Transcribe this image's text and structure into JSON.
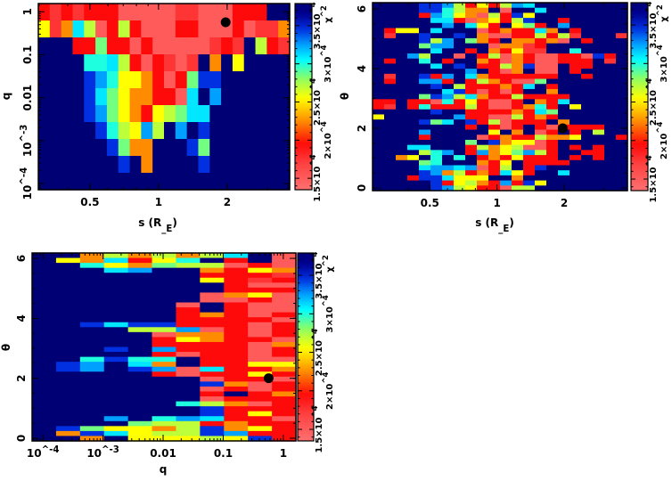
{
  "z_levels": {
    "P": 15000,
    "Q": 17500,
    "R": 19500,
    "O": 22500,
    "Y": 25500,
    "L": 27000,
    "G": 28500,
    "T": 30000,
    "C": 31000,
    "S": 32500,
    "B": 34500,
    "N": 38000
  },
  "colormap": [
    {
      "v": 13500,
      "color": "#ff7070"
    },
    {
      "v": 17000,
      "color": "#ff4040"
    },
    {
      "v": 19500,
      "color": "#ff0a0a"
    },
    {
      "v": 22500,
      "color": "#ff8c00"
    },
    {
      "v": 25500,
      "color": "#ffff00"
    },
    {
      "v": 28000,
      "color": "#90ff60"
    },
    {
      "v": 30500,
      "color": "#00ffff"
    },
    {
      "v": 32500,
      "color": "#00a0ff"
    },
    {
      "v": 34500,
      "color": "#0030e0"
    },
    {
      "v": 36500,
      "color": "#000090"
    },
    {
      "v": 38000,
      "color": "#000075"
    }
  ],
  "marker_color": "#000000",
  "chart_data": [
    {
      "type": "heatmap",
      "xlabel": "s (R_E)",
      "ylabel": "q",
      "xscale": "log",
      "yscale": "log",
      "xlim": [
        0.297,
        3.76
      ],
      "ylim": [
        7.2e-05,
        1.55
      ],
      "xticks": [
        {
          "v": 0.5,
          "label": "0.5"
        },
        {
          "v": 1,
          "label": "1"
        },
        {
          "v": 2,
          "label": "2"
        }
      ],
      "yticks": [
        {
          "v": 1,
          "label": "1"
        },
        {
          "v": 0.1,
          "label": "0.1"
        },
        {
          "v": 0.01,
          "label": "0.01"
        },
        {
          "v": 0.001,
          "label": "10^-3"
        },
        {
          "v": 0.0001,
          "label": "10^-4"
        }
      ],
      "z_label": "χ^2",
      "zlim": [
        13500,
        37900
      ],
      "z_ticks": [
        {
          "v": 15000,
          "label": "1.5×10^4"
        },
        {
          "v": 20000,
          "label": "2×10^4"
        },
        {
          "v": 25000,
          "label": "2.5×10^4"
        },
        {
          "v": 30000,
          "label": "3×10^4"
        },
        {
          "v": 35000,
          "label": "3.5×10^4"
        }
      ],
      "grid_cols": 22,
      "grid_rows_top_to_bottom": [
        "RQRQRRRPPPPPQQPPPRRRNN",
        "YQOCLPRLRPPPRRPPPRPQQO",
        "NNNRRGRRPRPPPPPQRQNLRQ",
        "NNNNTTCLRPRQPQNONYNNNN",
        "NNNNBSTYYORPRGBBNNNNNN",
        "NNNNBCGYOORRPCNSNNNNNN",
        "NNNNBSGYORYLGCCNNNNNNN",
        "NNNNNBTLYSLNSNBNNNNNNN",
        "NNNNNNBGOONNNBGNNNNNNN",
        "NNNNNNNBNONNNNBNNNNNNN",
        "NNNNNNNNNNNNNNNNNNNNNN"
      ],
      "best_fit": {
        "x": 1.97,
        "y": 0.57
      }
    },
    {
      "type": "heatmap",
      "xlabel": "s (R_E)",
      "ylabel": "θ",
      "xscale": "log",
      "yscale": "linear",
      "xlim": [
        0.277,
        3.84
      ],
      "ylim": [
        -0.09,
        6.21
      ],
      "xticks": [
        {
          "v": 0.5,
          "label": "0.5"
        },
        {
          "v": 1,
          "label": "1"
        },
        {
          "v": 2,
          "label": "2"
        }
      ],
      "yticks": [
        {
          "v": 0,
          "label": "0"
        },
        {
          "v": 2,
          "label": "2"
        },
        {
          "v": 4,
          "label": "4"
        },
        {
          "v": 6,
          "label": "6"
        }
      ],
      "z_label": "χ^2",
      "zlim": [
        13500,
        37900
      ],
      "z_ticks": [
        {
          "v": 15000,
          "label": "1.5×10^4"
        },
        {
          "v": 20000,
          "label": "2×10^4"
        },
        {
          "v": 25000,
          "label": "2.5×10^4"
        },
        {
          "v": 30000,
          "label": "3×10^4"
        },
        {
          "v": 35000,
          "label": "3.5×10^4"
        }
      ],
      "grid_cols": 22,
      "grid_rows_top_to_bottom": [
        "NNNNBBSLRYRLSCNNNNNNNN",
        "NNNNBBTLOONPNNCNNNNNNN",
        "NNNNRSTYOPLRBYNNNNNNNN",
        "NNNNNCCRPOYRLBNNRNNNNN",
        "NNNNNNSNCYRNYGRNSNNNNN",
        "NRYYNCNNNPRORRCONRNNNN",
        "NQNNBNNBNOPPRRLRLQNNNQ",
        "NNNNBLSNGORNOOROPNRNNN",
        "NNNNGSSNNNPOOQRNNNNNNN",
        "NNNNNCNNRNORYQQNNTNNNN",
        "NNNSLNNPNRLPORPPRRPBRN",
        "NRNNTNRNNORPORPPRRRNQN",
        "NNNNNCNBNRRLOBPPNRRNNN",
        "NNNNNNNNSNRPONPPNRNNNN",
        "NQNNBRSNCORRRRRRNNRNNN",
        "NRNNSSRNRLORPPGNNNNNNN",
        "NNNNNBNLRRRORCNRNNNNNN",
        "NNNNNNCBRPRPRNNONNNNNN",
        "NNNNGBSLCORRLRRRRNNNNN",
        "RRNRRPTRYRPPRNORCNNNNN",
        "RQNRTRRRLRPPROTRNYNNNN",
        "NNNNNBNNRRRRORCGNNNNNN",
        "YNNNNNNSRRPPLRORNNNNNN",
        "NNNNBGCNBRLPRRRNONNNNN",
        "NNNNNNNNRNRPRNRPRRRRNN",
        "NNNNSNNNNNYNONPRNRNLNN",
        "NNNNRNNNNPRORRLOOYNNNR",
        "NNNNNNNNGNBOYYPRNNNNNN",
        "NNNCCNNNRLOYLPPRNRNRNN",
        "NNNNLTSNRSOYGSLRNNRRNN",
        "NNOYNTNTNRORYRRRNRNRNN",
        "NNNNGTNNNORYNRRRRNNNNN",
        "NNNNCSSCSPRLNRBNNNNNNN",
        "NNNNBSOLRORCYRNNCNNNNN",
        "NNNRBBCYYYNNONNNNNNNNN",
        "NNNNNBRYLORSRBYNNNNNNN",
        "NNNNNBSLYRRPLLNNNNNNNN"
      ],
      "best_fit": {
        "x": 1.97,
        "y": 2.0
      }
    },
    {
      "type": "heatmap",
      "xlabel": "q",
      "ylabel": "θ",
      "xscale": "log",
      "yscale": "linear",
      "xlim": [
        6.6e-05,
        1.62
      ],
      "ylim": [
        -0.09,
        6.18
      ],
      "xticks": [
        {
          "v": 0.0001,
          "label": "10^-4"
        },
        {
          "v": 0.001,
          "label": "10^-3"
        },
        {
          "v": 0.01,
          "label": "0.01"
        },
        {
          "v": 0.1,
          "label": "0.1"
        },
        {
          "v": 1,
          "label": "1"
        }
      ],
      "yticks": [
        {
          "v": 0,
          "label": "0"
        },
        {
          "v": 2,
          "label": "2"
        },
        {
          "v": 4,
          "label": "4"
        },
        {
          "v": 6,
          "label": "6"
        }
      ],
      "z_label": "χ^2",
      "zlim": [
        13500,
        37900
      ],
      "z_ticks": [
        {
          "v": 15000,
          "label": "1.5×10^4"
        },
        {
          "v": 20000,
          "label": "2×10^4"
        },
        {
          "v": 25000,
          "label": "2.5×10^4"
        },
        {
          "v": 30000,
          "label": "3×10^4"
        },
        {
          "v": 35000,
          "label": "3.5×10^4"
        }
      ],
      "grid_cols": 11,
      "grid_rows_top_to_bottom": [
        "NNOLOLOLCNP",
        "NYOCRYTNRNP",
        "NNTYOGLLPRP",
        "NNNCSNNORYO",
        "NNNNNNNRRRQ",
        "NNNNNNNYRQR",
        "NNNNNNNNRPP",
        "NNNNNNNNRRR",
        "NNNNNNNPOYP",
        "NNNNNNNPPRP",
        "NNNNNNPNRPP",
        "NNNNNNRNRPP",
        "NNNNNNRORPR",
        "NNNNNNRRRRP",
        "NNBCBBRRRPR",
        "NNNNLLSPRPR",
        "NNNNNPOORPR",
        "NNNNNRYORRP",
        "NNNNNRRRRPO",
        "NNNBNSRRRPR",
        "NNNNNRPRRPR",
        "NNTBTTNRRPP",
        "NBSNCONRRYY",
        "NBSNBSPCRRO",
        "NNNNNRPRRYR",
        "NNNNNNNPRRP",
        "NNNNNNNBOPR",
        "NNNNNNNPRPR",
        "NNNNNNNRNRO",
        "NNNNNNNPRRR",
        "NNNNNNTLOPR",
        "NNNNNNNBRRR",
        "NNNNNNNBRYR",
        "NNNSNTSCRRP",
        "NNNNGLLRORR",
        "NBGYYOLBOYR",
        "NOBCYLLBSRR",
        "NNONYYYLYBR"
      ],
      "best_fit": {
        "x": 0.57,
        "y": 2.0
      }
    }
  ]
}
